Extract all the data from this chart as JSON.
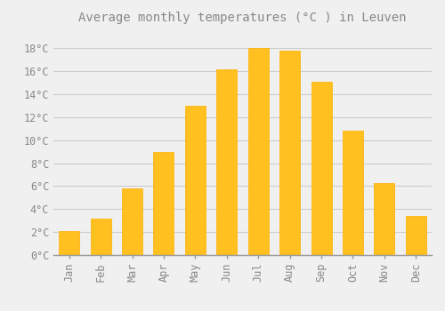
{
  "title": "Average monthly temperatures (°C ) in Leuven",
  "months": [
    "Jan",
    "Feb",
    "Mar",
    "Apr",
    "May",
    "Jun",
    "Jul",
    "Aug",
    "Sep",
    "Oct",
    "Nov",
    "Dec"
  ],
  "temperatures": [
    2.1,
    3.2,
    5.8,
    9.0,
    13.0,
    16.2,
    18.0,
    17.8,
    15.1,
    10.8,
    6.3,
    3.4
  ],
  "bar_color": "#FFC020",
  "bar_edge_color": "#FFB000",
  "background_color": "#F0F0F0",
  "grid_color": "#CCCCCC",
  "text_color": "#888888",
  "ylim": [
    0,
    19.5
  ],
  "yticks": [
    0,
    2,
    4,
    6,
    8,
    10,
    12,
    14,
    16,
    18
  ],
  "title_fontsize": 10,
  "tick_fontsize": 8.5
}
